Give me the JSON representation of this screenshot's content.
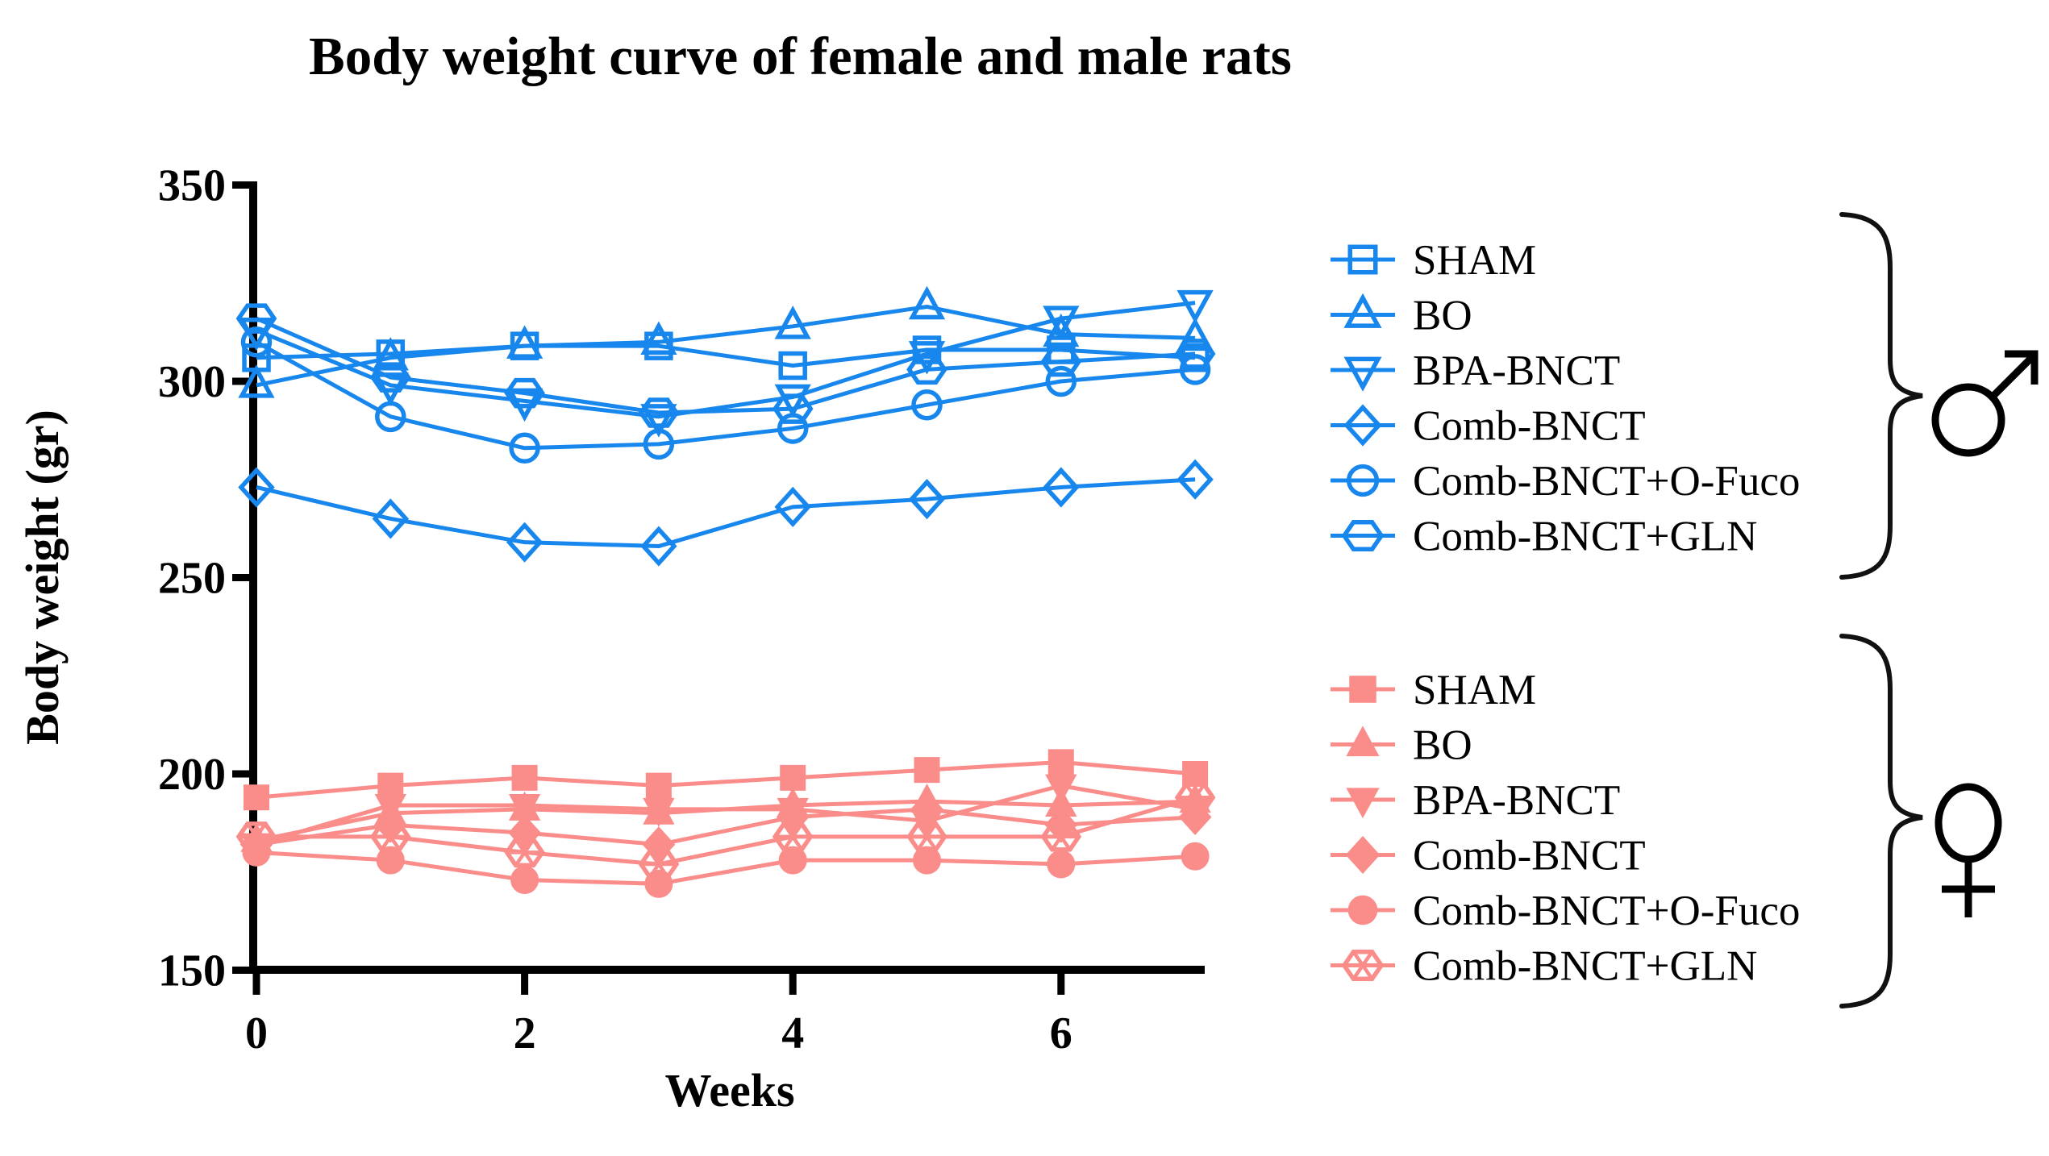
{
  "chart_data": {
    "type": "line",
    "title": "Body weight curve of female and male rats",
    "xlabel": "Weeks",
    "ylabel": "Body weight (gr)",
    "x": [
      0,
      1,
      2,
      3,
      4,
      5,
      6,
      7
    ],
    "xticks": [
      0,
      2,
      4,
      6
    ],
    "yticks": [
      150,
      200,
      250,
      300,
      350
    ],
    "ylim": [
      150,
      350
    ],
    "xlim": [
      0,
      7.1
    ],
    "grid": false,
    "legend_position": "right",
    "groups": [
      {
        "id": "male",
        "symbol_icon": "male-symbol",
        "color": "#1787EE"
      },
      {
        "id": "female",
        "symbol_icon": "female-symbol",
        "color": "#FA8C8A"
      }
    ],
    "series": [
      {
        "name": "SHAM",
        "group": "male",
        "marker": "square",
        "fill": "open",
        "values": [
          306,
          307,
          309,
          309,
          304,
          308,
          308,
          306
        ]
      },
      {
        "name": "BO",
        "group": "male",
        "marker": "triangle-up",
        "fill": "open",
        "values": [
          299,
          306,
          309,
          310,
          314,
          319,
          312,
          311
        ]
      },
      {
        "name": "BPA-BNCT",
        "group": "male",
        "marker": "triangle-down",
        "fill": "open",
        "values": [
          313,
          299,
          295,
          291,
          296,
          307,
          316,
          320
        ]
      },
      {
        "name": "Comb-BNCT",
        "group": "male",
        "marker": "diamond",
        "fill": "open",
        "values": [
          273,
          265,
          259,
          258,
          268,
          270,
          273,
          275
        ]
      },
      {
        "name": "Comb-BNCT+O-Fuco",
        "group": "male",
        "marker": "circle",
        "fill": "open",
        "values": [
          310,
          291,
          283,
          284,
          288,
          294,
          300,
          303
        ]
      },
      {
        "name": "Comb-BNCT+GLN",
        "group": "male",
        "marker": "hexagon",
        "fill": "open",
        "values": [
          316,
          301,
          297,
          292,
          293,
          303,
          305,
          307
        ]
      },
      {
        "name": "SHAM",
        "group": "female",
        "marker": "square",
        "fill": "solid",
        "values": [
          194,
          197,
          199,
          197,
          199,
          201,
          203,
          200
        ]
      },
      {
        "name": "BO",
        "group": "female",
        "marker": "triangle-up",
        "fill": "solid",
        "values": [
          183,
          190,
          191,
          190,
          192,
          193,
          192,
          193
        ]
      },
      {
        "name": "BPA-BNCT",
        "group": "female",
        "marker": "triangle-down",
        "fill": "solid",
        "values": [
          182,
          192,
          192,
          191,
          191,
          188,
          197,
          191
        ]
      },
      {
        "name": "Comb-BNCT",
        "group": "female",
        "marker": "diamond",
        "fill": "solid",
        "values": [
          182,
          187,
          185,
          182,
          189,
          191,
          187,
          189
        ]
      },
      {
        "name": "Comb-BNCT+O-Fuco",
        "group": "female",
        "marker": "circle",
        "fill": "solid",
        "values": [
          180,
          178,
          173,
          172,
          178,
          178,
          177,
          179
        ]
      },
      {
        "name": "Comb-BNCT+GLN",
        "group": "female",
        "marker": "hexagon-cross",
        "fill": "open",
        "values": [
          184,
          184,
          180,
          177,
          184,
          184,
          184,
          194
        ]
      }
    ]
  },
  "colors": {
    "male_accent": "#1787EE",
    "female_accent": "#FA8C8A",
    "axis": "#000000",
    "background": "#FFFFFF"
  }
}
